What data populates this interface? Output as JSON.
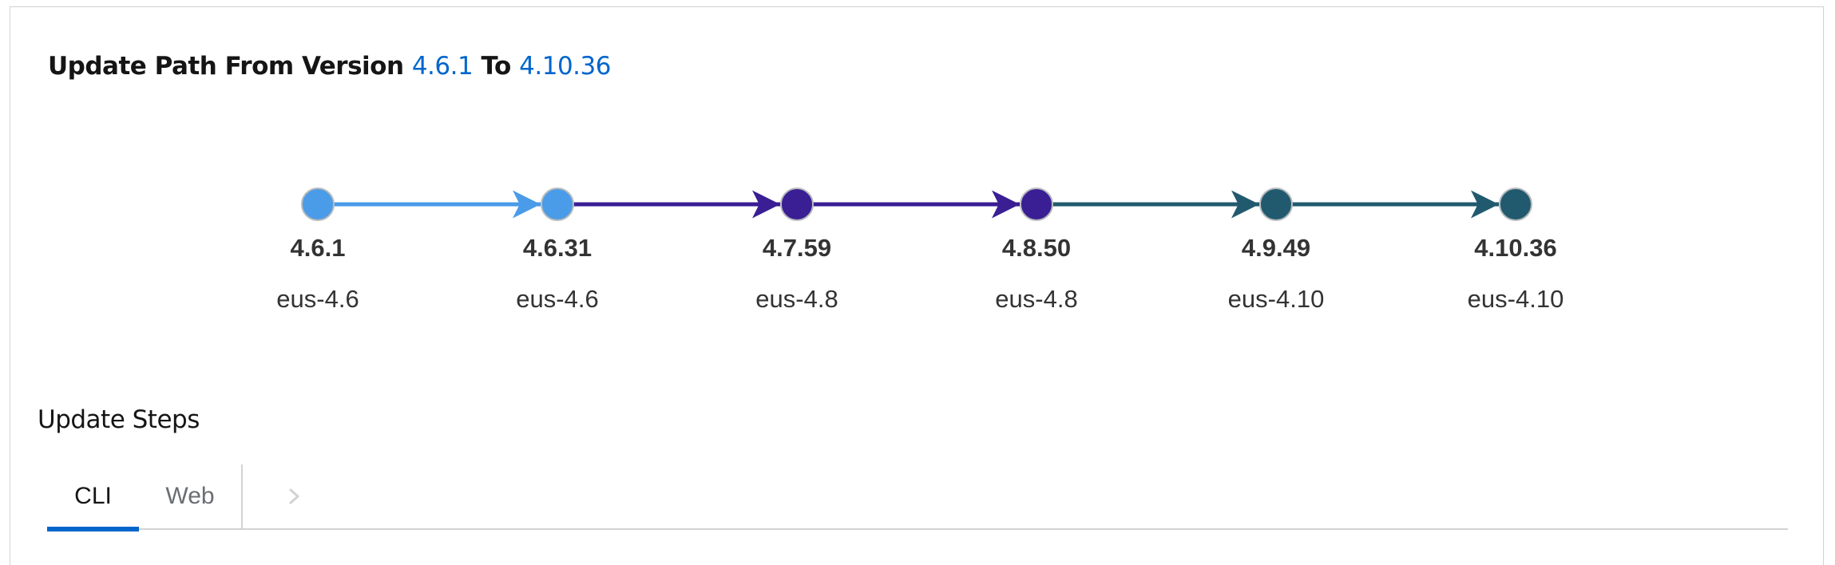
{
  "heading": {
    "prefix": "Update Path From Version",
    "from_version": "4.6.1",
    "to_label": "To",
    "to_version": "4.10.36"
  },
  "colors": {
    "link_blue": "#0066cc",
    "light_blue": "#4a9be8",
    "purple": "#3a1e94",
    "teal": "#215a6e"
  },
  "path": {
    "nodes": [
      {
        "version": "4.6.1",
        "channel": "eus-4.6",
        "color": "#4a9be8"
      },
      {
        "version": "4.6.31",
        "channel": "eus-4.6",
        "color": "#4a9be8"
      },
      {
        "version": "4.7.59",
        "channel": "eus-4.8",
        "color": "#3a1e94"
      },
      {
        "version": "4.8.50",
        "channel": "eus-4.8",
        "color": "#3a1e94"
      },
      {
        "version": "4.9.49",
        "channel": "eus-4.10",
        "color": "#215a6e"
      },
      {
        "version": "4.10.36",
        "channel": "eus-4.10",
        "color": "#215a6e"
      }
    ],
    "edges": [
      {
        "from": 0,
        "to": 1,
        "color": "#4a9be8"
      },
      {
        "from": 1,
        "to": 2,
        "color": "#3a1e94"
      },
      {
        "from": 2,
        "to": 3,
        "color": "#3a1e94"
      },
      {
        "from": 3,
        "to": 4,
        "color": "#215a6e"
      },
      {
        "from": 4,
        "to": 5,
        "color": "#215a6e"
      }
    ]
  },
  "steps": {
    "title": "Update Steps",
    "tabs": [
      {
        "label": "CLI",
        "active": true
      },
      {
        "label": "Web",
        "active": false
      }
    ],
    "scroll_icon": "chevron-right-icon"
  }
}
